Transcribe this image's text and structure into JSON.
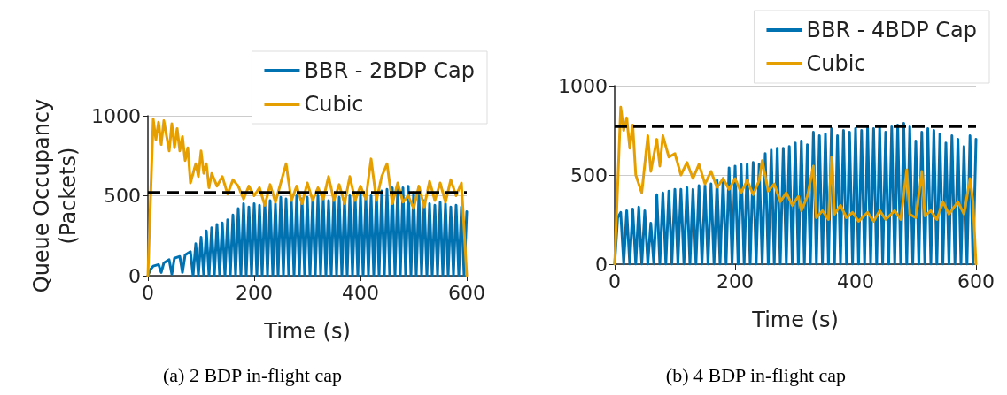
{
  "chart_data": [
    {
      "type": "line",
      "xlabel": "Time (s)",
      "ylabel": "Queue Occupancy\n(Packets)",
      "xlim": [
        0,
        600
      ],
      "xticks": [
        0,
        200,
        400,
        600
      ],
      "ylim": [
        0,
        1000
      ],
      "yticks": [
        0,
        500,
        1000
      ],
      "grid": "y",
      "legend": "top right",
      "marker": "none",
      "line_style": "solid",
      "ref_lines": [
        {
          "axis": "y",
          "value": 520,
          "color": "#000000",
          "line_style": "dashed"
        }
      ],
      "annotations": [
        "(a) 2 BDP in-flight cap"
      ],
      "series": [
        {
          "name": "BBR - 2BDP Cap",
          "color": "#0072b2",
          "x": [
            0,
            5,
            10,
            20,
            25,
            30,
            40,
            45,
            50,
            60,
            65,
            70,
            80,
            85,
            90,
            95,
            100,
            105,
            110,
            115,
            120,
            125,
            130,
            135,
            140,
            145,
            150,
            155,
            160,
            165,
            170,
            175,
            180,
            185,
            190,
            195,
            200,
            205,
            210,
            215,
            220,
            225,
            230,
            235,
            240,
            245,
            250,
            255,
            260,
            265,
            270,
            275,
            280,
            285,
            290,
            295,
            300,
            305,
            310,
            315,
            320,
            325,
            330,
            335,
            340,
            345,
            350,
            355,
            360,
            365,
            370,
            375,
            380,
            385,
            390,
            395,
            400,
            405,
            410,
            415,
            420,
            425,
            430,
            435,
            440,
            445,
            450,
            455,
            460,
            465,
            470,
            475,
            480,
            485,
            490,
            495,
            500,
            505,
            510,
            515,
            520,
            525,
            530,
            535,
            540,
            545,
            550,
            555,
            560,
            565,
            570,
            575,
            580,
            585,
            590,
            595,
            600
          ],
          "values": [
            0,
            40,
            60,
            70,
            20,
            80,
            100,
            10,
            110,
            120,
            20,
            130,
            150,
            0,
            200,
            0,
            240,
            0,
            280,
            0,
            300,
            0,
            320,
            0,
            330,
            0,
            350,
            0,
            380,
            0,
            420,
            0,
            450,
            0,
            430,
            0,
            450,
            0,
            440,
            0,
            460,
            0,
            470,
            0,
            450,
            0,
            490,
            0,
            480,
            0,
            470,
            0,
            500,
            0,
            480,
            0,
            490,
            0,
            470,
            0,
            500,
            0,
            480,
            0,
            470,
            0,
            500,
            0,
            490,
            0,
            480,
            0,
            500,
            0,
            490,
            0,
            510,
            0,
            490,
            0,
            500,
            0,
            520,
            0,
            530,
            0,
            540,
            0,
            550,
            0,
            540,
            0,
            550,
            0,
            560,
            0,
            520,
            0,
            500,
            0,
            470,
            0,
            450,
            0,
            440,
            0,
            460,
            0,
            450,
            0,
            430,
            0,
            440,
            0,
            430,
            0,
            400
          ]
        },
        {
          "name": "Cubic",
          "color": "#e69f00",
          "x": [
            0,
            10,
            15,
            20,
            25,
            30,
            40,
            45,
            50,
            55,
            60,
            65,
            70,
            75,
            80,
            90,
            95,
            100,
            105,
            110,
            115,
            120,
            130,
            140,
            150,
            160,
            170,
            180,
            190,
            200,
            210,
            220,
            230,
            240,
            260,
            270,
            280,
            290,
            300,
            310,
            320,
            330,
            340,
            350,
            360,
            370,
            380,
            390,
            400,
            410,
            420,
            430,
            440,
            450,
            460,
            470,
            480,
            490,
            500,
            510,
            520,
            530,
            540,
            550,
            560,
            570,
            580,
            590,
            600
          ],
          "values": [
            0,
            980,
            850,
            960,
            820,
            970,
            780,
            950,
            800,
            920,
            780,
            870,
            720,
            800,
            580,
            700,
            620,
            780,
            640,
            700,
            550,
            640,
            560,
            620,
            510,
            600,
            560,
            480,
            560,
            500,
            550,
            440,
            570,
            460,
            700,
            470,
            560,
            450,
            580,
            470,
            550,
            480,
            620,
            470,
            570,
            450,
            620,
            470,
            560,
            480,
            730,
            470,
            620,
            700,
            450,
            580,
            460,
            500,
            420,
            560,
            430,
            590,
            470,
            580,
            460,
            600,
            500,
            580,
            0
          ]
        }
      ]
    },
    {
      "type": "line",
      "xlabel": "Time (s)",
      "xlim": [
        0,
        600
      ],
      "xticks": [
        0,
        200,
        400,
        600
      ],
      "ylim": [
        0,
        1000
      ],
      "yticks": [
        0,
        500,
        1000
      ],
      "grid": "y",
      "legend": "top right",
      "marker": "none",
      "line_style": "solid",
      "ref_lines": [
        {
          "axis": "y",
          "value": 775,
          "color": "#000000",
          "line_style": "dashed"
        }
      ],
      "annotations": [
        "(b) 4 BDP in-flight cap"
      ],
      "series": [
        {
          "name": "BBR - 4BDP Cap",
          "color": "#0072b2",
          "x": [
            0,
            5,
            10,
            15,
            20,
            25,
            30,
            35,
            40,
            45,
            50,
            55,
            60,
            65,
            70,
            75,
            80,
            85,
            90,
            95,
            100,
            105,
            110,
            115,
            120,
            125,
            130,
            135,
            140,
            145,
            150,
            155,
            160,
            165,
            170,
            175,
            180,
            185,
            190,
            195,
            200,
            205,
            210,
            215,
            220,
            225,
            230,
            235,
            240,
            245,
            250,
            255,
            260,
            265,
            270,
            275,
            280,
            285,
            290,
            295,
            300,
            305,
            310,
            315,
            320,
            325,
            330,
            335,
            340,
            345,
            350,
            355,
            360,
            365,
            370,
            375,
            380,
            385,
            390,
            395,
            400,
            405,
            410,
            415,
            420,
            425,
            430,
            435,
            440,
            445,
            450,
            455,
            460,
            465,
            470,
            475,
            480,
            485,
            490,
            495,
            500,
            505,
            510,
            515,
            520,
            525,
            530,
            535,
            540,
            545,
            550,
            555,
            560,
            565,
            570,
            575,
            580,
            585,
            590,
            595,
            600
          ],
          "values": [
            0,
            260,
            290,
            0,
            300,
            0,
            310,
            0,
            320,
            0,
            300,
            0,
            230,
            0,
            390,
            0,
            400,
            0,
            410,
            0,
            420,
            0,
            420,
            0,
            430,
            0,
            420,
            0,
            440,
            0,
            440,
            0,
            450,
            0,
            470,
            0,
            480,
            0,
            540,
            0,
            550,
            0,
            560,
            0,
            560,
            0,
            570,
            0,
            560,
            0,
            620,
            0,
            640,
            0,
            650,
            0,
            650,
            0,
            660,
            0,
            680,
            0,
            690,
            0,
            670,
            0,
            740,
            0,
            720,
            0,
            730,
            0,
            760,
            0,
            720,
            0,
            750,
            0,
            740,
            0,
            760,
            0,
            750,
            0,
            770,
            0,
            760,
            0,
            770,
            0,
            740,
            0,
            770,
            0,
            780,
            0,
            790,
            0,
            770,
            0,
            690,
            0,
            740,
            0,
            760,
            0,
            750,
            0,
            730,
            0,
            680,
            0,
            720,
            0,
            700,
            0,
            660,
            0,
            720,
            0,
            700
          ]
        },
        {
          "name": "Cubic",
          "color": "#e69f00",
          "x": [
            0,
            10,
            15,
            20,
            25,
            30,
            35,
            45,
            55,
            60,
            70,
            75,
            80,
            90,
            100,
            110,
            120,
            130,
            140,
            150,
            160,
            170,
            180,
            190,
            200,
            210,
            220,
            230,
            240,
            245,
            255,
            265,
            275,
            285,
            295,
            305,
            310,
            320,
            330,
            335,
            345,
            355,
            360,
            365,
            375,
            385,
            395,
            405,
            420,
            430,
            440,
            450,
            465,
            475,
            485,
            490,
            500,
            510,
            515,
            525,
            535,
            545,
            555,
            570,
            580,
            590,
            595,
            600
          ],
          "values": [
            0,
            880,
            750,
            820,
            650,
            780,
            500,
            400,
            720,
            520,
            700,
            550,
            720,
            600,
            620,
            500,
            570,
            480,
            560,
            450,
            520,
            430,
            480,
            420,
            480,
            400,
            470,
            390,
            470,
            580,
            410,
            450,
            350,
            400,
            330,
            380,
            300,
            380,
            550,
            260,
            300,
            250,
            600,
            280,
            330,
            260,
            290,
            240,
            290,
            240,
            300,
            250,
            300,
            250,
            530,
            280,
            260,
            520,
            270,
            300,
            250,
            350,
            280,
            350,
            280,
            480,
            350,
            0
          ]
        }
      ]
    }
  ]
}
